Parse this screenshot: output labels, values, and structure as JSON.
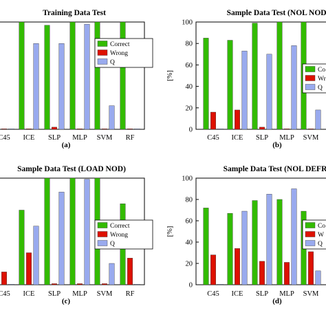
{
  "chart_data": [
    {
      "type": "bar",
      "title": "Training Data Test",
      "caption": "(a)",
      "categories": [
        "C45",
        "ICE",
        "SLP",
        "MLP",
        "SVM",
        "RF"
      ],
      "series": [
        {
          "name": "Correct",
          "values": [
            100,
            100,
            97,
            100,
            100,
            100
          ]
        },
        {
          "name": "Wrong",
          "values": [
            0,
            0,
            2,
            0,
            0,
            0
          ]
        },
        {
          "name": "Q",
          "values": [
            0,
            80,
            80,
            98,
            22,
            0
          ]
        }
      ],
      "ylim": [
        0,
        100
      ],
      "yticks": [],
      "ylabel": "",
      "legend": "top-right",
      "colors": [
        "#33bb00",
        "#dd1100",
        "#99aaee"
      ]
    },
    {
      "type": "bar",
      "title": "Sample Data Test (NOL NOD)",
      "caption": "(b)",
      "categories": [
        "C45",
        "ICE",
        "SLP",
        "MLP",
        "SVM"
      ],
      "series": [
        {
          "name": "Correct",
          "values": [
            85,
            83,
            99,
            100,
            100
          ]
        },
        {
          "name": "Wrong",
          "values": [
            16,
            18,
            2,
            0,
            0
          ]
        },
        {
          "name": "Q",
          "values": [
            0,
            73,
            70,
            78,
            18
          ]
        }
      ],
      "ylim": [
        0,
        100
      ],
      "yticks": [
        "0",
        "20",
        "40",
        "60",
        "80",
        "100"
      ],
      "ylabel": "[%]",
      "legend": "right",
      "legend_labels": [
        "Co",
        "Wro",
        "Q"
      ],
      "colors": [
        "#33bb00",
        "#dd1100",
        "#99aaee"
      ]
    },
    {
      "type": "bar",
      "title": "Sample Data Test (LOAD NOD)",
      "caption": "(c)",
      "categories": [
        "C45",
        "ICE",
        "SLP",
        "MLP",
        "SVM",
        "RF"
      ],
      "series": [
        {
          "name": "Correct",
          "values": [
            88,
            70,
            100,
            100,
            100,
            76
          ]
        },
        {
          "name": "Wrong",
          "values": [
            12,
            30,
            1,
            1,
            1,
            25
          ]
        },
        {
          "name": "Q",
          "values": [
            0,
            55,
            87,
            99,
            20,
            0
          ]
        }
      ],
      "ylim": [
        0,
        100
      ],
      "yticks": [],
      "ylabel": "",
      "legend": "right",
      "colors": [
        "#33bb00",
        "#dd1100",
        "#99aaee"
      ]
    },
    {
      "type": "bar",
      "title": "Sample Data Test (NOL DEFR",
      "caption": "(d)",
      "categories": [
        "C45",
        "ICE",
        "SLP",
        "MLP",
        "SVM"
      ],
      "series": [
        {
          "name": "Correct",
          "values": [
            72,
            67,
            79,
            80,
            69
          ]
        },
        {
          "name": "Wrong",
          "values": [
            28,
            34,
            22,
            21,
            31
          ]
        },
        {
          "name": "Q",
          "values": [
            0,
            69,
            85,
            90,
            13
          ]
        }
      ],
      "ylim": [
        0,
        100
      ],
      "yticks": [
        "0",
        "20",
        "40",
        "60",
        "80",
        "100"
      ],
      "ylabel": "[%]",
      "legend": "right",
      "legend_labels": [
        "Co",
        "W",
        "Q"
      ],
      "colors": [
        "#33bb00",
        "#dd1100",
        "#99aaee"
      ]
    }
  ]
}
